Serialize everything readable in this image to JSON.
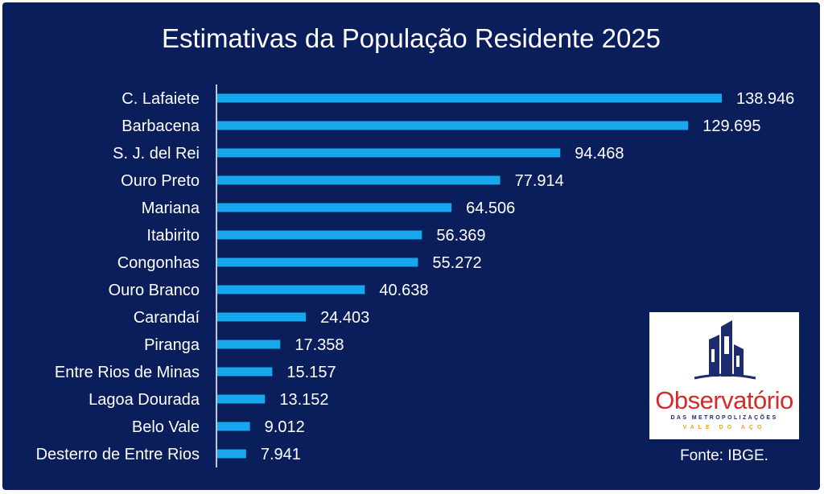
{
  "chart_data": {
    "type": "bar",
    "orientation": "horizontal",
    "title": "Estimativas da População Residente 2025",
    "categories": [
      "C. Lafaiete",
      "Barbacena",
      "S. J. del Rei",
      "Ouro Preto",
      "Mariana",
      "Itabirito",
      "Congonhas",
      "Ouro Branco",
      "Carandaí",
      "Piranga",
      "Entre Rios de Minas",
      "Lagoa Dourada",
      "Belo Vale",
      "Desterro de Entre Rios"
    ],
    "values": [
      138946,
      129695,
      94468,
      77914,
      64506,
      56369,
      55272,
      40638,
      24403,
      17358,
      15157,
      13152,
      9012,
      7941
    ],
    "value_labels": [
      "138.946",
      "129.695",
      "94.468",
      "77.914",
      "64.506",
      "56.369",
      "55.272",
      "40.638",
      "24.403",
      "17.358",
      "15.157",
      "13.152",
      "9.012",
      "7.941"
    ],
    "xlabel": "",
    "ylabel": "",
    "grid": false,
    "bar_color": "#17a7ec",
    "background_color": "#0b1e5c"
  },
  "logo": {
    "name": "Observatório",
    "line1": "DAS METROPOLIZAÇÕES",
    "line2": "VALE DO AÇO",
    "icon": "buildings-icon"
  },
  "source": "Fonte: IBGE."
}
